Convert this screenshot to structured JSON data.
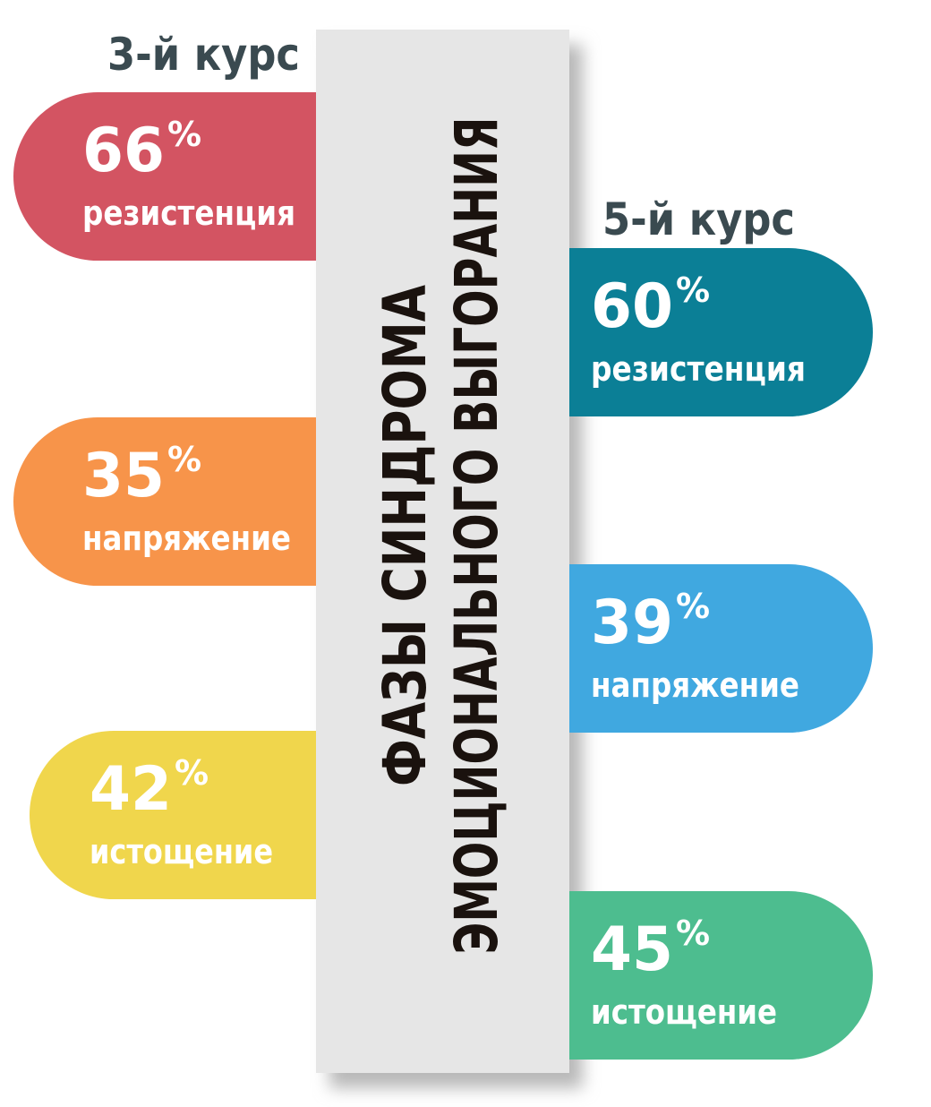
{
  "title": [
    "ФАЗЫ СИНДРОМА",
    "ЭМОЦИОНАЛЬНОГО ВЫГОРАНИЯ"
  ],
  "groups": [
    {
      "name": "3-й курс",
      "items": [
        {
          "value": 66,
          "unit": "%",
          "label": "резистенция",
          "color": "#d35462"
        },
        {
          "value": 35,
          "unit": "%",
          "label": "напряжение",
          "color": "#f7944a"
        },
        {
          "value": 42,
          "unit": "%",
          "label": "истощение",
          "color": "#f0d64c"
        }
      ]
    },
    {
      "name": "5-й курс",
      "items": [
        {
          "value": 60,
          "unit": "%",
          "label": "резистенция",
          "color": "#0b7f96"
        },
        {
          "value": 39,
          "unit": "%",
          "label": "напряжение",
          "color": "#40a8e0"
        },
        {
          "value": 45,
          "unit": "%",
          "label": "истощение",
          "color": "#4dbd8f"
        }
      ]
    }
  ]
}
